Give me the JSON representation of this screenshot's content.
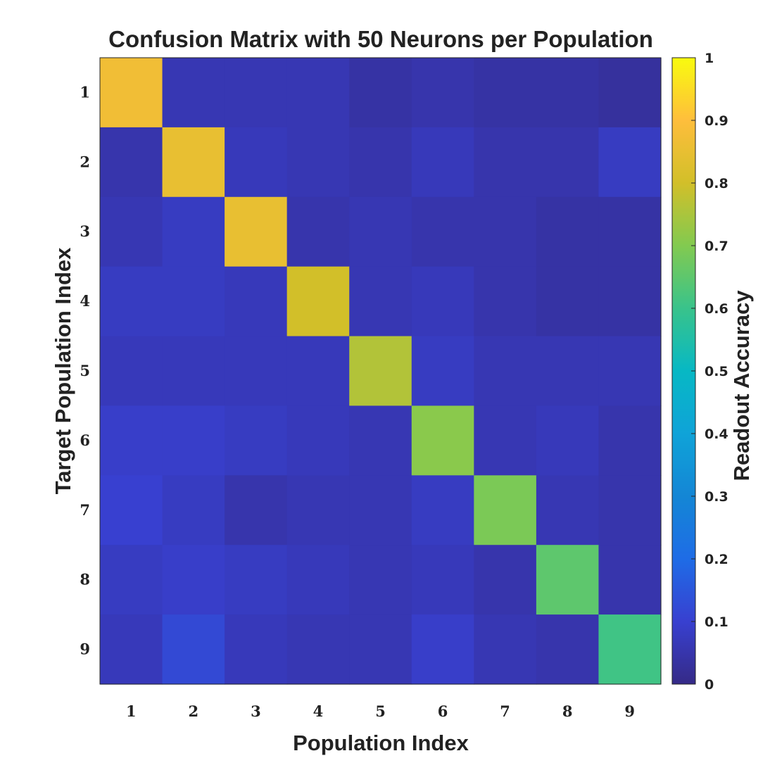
{
  "chart_data": {
    "type": "heatmap",
    "title": "Confusion Matrix with 50 Neurons per Population",
    "xlabel": "Population Index",
    "ylabel": "Target Population Index",
    "x_categories": [
      "1",
      "2",
      "3",
      "4",
      "5",
      "6",
      "7",
      "8",
      "9"
    ],
    "y_categories": [
      "1",
      "2",
      "3",
      "4",
      "5",
      "6",
      "7",
      "8",
      "9"
    ],
    "values": [
      [
        0.87,
        0.06,
        0.06,
        0.06,
        0.04,
        0.05,
        0.04,
        0.04,
        0.03
      ],
      [
        0.05,
        0.85,
        0.07,
        0.06,
        0.05,
        0.07,
        0.05,
        0.05,
        0.08
      ],
      [
        0.06,
        0.08,
        0.85,
        0.05,
        0.06,
        0.05,
        0.05,
        0.04,
        0.04
      ],
      [
        0.08,
        0.08,
        0.07,
        0.8,
        0.06,
        0.07,
        0.05,
        0.04,
        0.04
      ],
      [
        0.07,
        0.07,
        0.07,
        0.07,
        0.76,
        0.08,
        0.06,
        0.06,
        0.06
      ],
      [
        0.09,
        0.09,
        0.08,
        0.07,
        0.06,
        0.71,
        0.06,
        0.07,
        0.05
      ],
      [
        0.1,
        0.08,
        0.05,
        0.06,
        0.06,
        0.08,
        0.69,
        0.06,
        0.05
      ],
      [
        0.08,
        0.09,
        0.08,
        0.07,
        0.06,
        0.07,
        0.05,
        0.65,
        0.05
      ],
      [
        0.07,
        0.12,
        0.07,
        0.06,
        0.06,
        0.09,
        0.06,
        0.05,
        0.61
      ]
    ],
    "colorbar": {
      "label": "Readout Accuracy",
      "range": [
        0,
        1
      ],
      "ticks": [
        "0",
        "0.1",
        "0.2",
        "0.3",
        "0.4",
        "0.5",
        "0.6",
        "0.7",
        "0.8",
        "0.9",
        "1"
      ],
      "colormap": "parula"
    },
    "grid": false
  }
}
